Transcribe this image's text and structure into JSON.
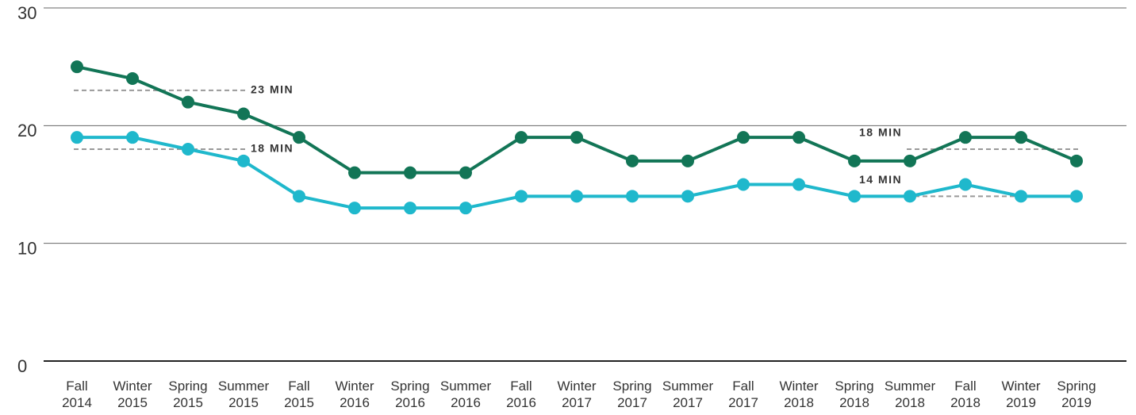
{
  "chart_data": {
    "type": "line",
    "categories": [
      "Fall 2014",
      "Winter 2015",
      "Spring 2015",
      "Summer 2015",
      "Fall 2015",
      "Winter 2016",
      "Spring 2016",
      "Summer 2016",
      "Fall 2016",
      "Winter 2017",
      "Spring 2017",
      "Summer 2017",
      "Fall 2017",
      "Winter 2018",
      "Spring 2018",
      "Summer 2018",
      "Fall 2018",
      "Winter 2019",
      "Spring 2019"
    ],
    "series": [
      {
        "color": "#127556",
        "values": [
          25,
          24,
          22,
          21,
          19,
          16,
          16,
          16,
          19,
          19,
          17,
          17,
          19,
          19,
          17,
          17,
          19,
          19,
          17
        ]
      },
      {
        "color": "#1fb8cc",
        "values": [
          19,
          19,
          18,
          17,
          14,
          13,
          13,
          13,
          14,
          14,
          14,
          14,
          15,
          15,
          14,
          14,
          15,
          14,
          14
        ]
      }
    ],
    "annotations": [
      {
        "label": "23 MIN",
        "value": 23,
        "from": 0,
        "to": 3
      },
      {
        "label": "18 MIN",
        "value": 18,
        "from": 0,
        "to": 3
      },
      {
        "label": "18 MIN",
        "value": 18,
        "from": 15,
        "to": 18
      },
      {
        "label": "14 MIN",
        "value": 14,
        "from": 15,
        "to": 18
      }
    ],
    "ylim": [
      0,
      30
    ],
    "yticks": [
      0,
      10,
      20,
      30
    ],
    "grid": true
  }
}
